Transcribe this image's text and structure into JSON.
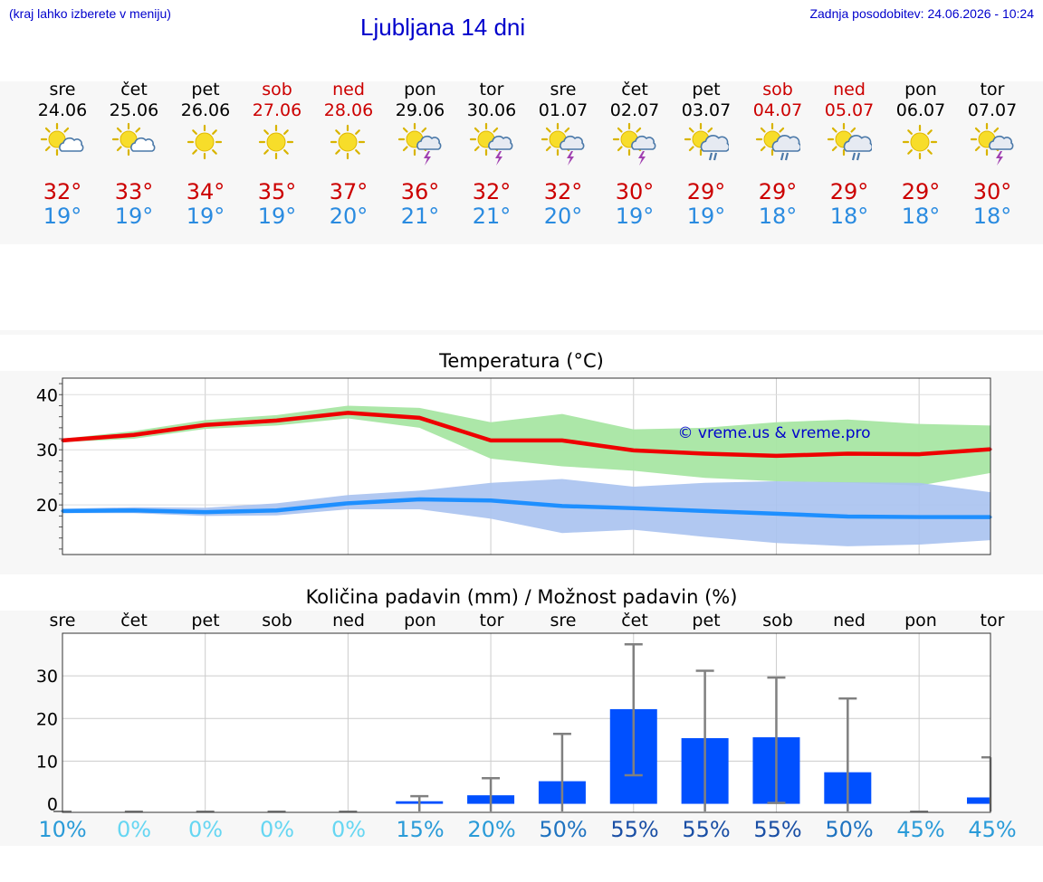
{
  "header": {
    "hint": "(kraj lahko izberete v meniju)",
    "title": "Ljubljana 14 dni",
    "updated": "Zadnja posodobitev: 24.06.2026 - 10:24"
  },
  "days": [
    {
      "name": "sre",
      "date": "24.06",
      "weekend": false,
      "icon": "sun-cloud-icon",
      "tmax": "32°",
      "tmin": "19°"
    },
    {
      "name": "čet",
      "date": "25.06",
      "weekend": false,
      "icon": "sun-cloud-icon",
      "tmax": "33°",
      "tmin": "19°"
    },
    {
      "name": "pet",
      "date": "26.06",
      "weekend": false,
      "icon": "sun-icon",
      "tmax": "34°",
      "tmin": "19°"
    },
    {
      "name": "sob",
      "date": "27.06",
      "weekend": true,
      "icon": "sun-icon",
      "tmax": "35°",
      "tmin": "19°"
    },
    {
      "name": "ned",
      "date": "28.06",
      "weekend": true,
      "icon": "sun-icon",
      "tmax": "37°",
      "tmin": "20°"
    },
    {
      "name": "pon",
      "date": "29.06",
      "weekend": false,
      "icon": "sun-storm-icon",
      "tmax": "36°",
      "tmin": "21°"
    },
    {
      "name": "tor",
      "date": "30.06",
      "weekend": false,
      "icon": "sun-storm-icon",
      "tmax": "32°",
      "tmin": "21°"
    },
    {
      "name": "sre",
      "date": "01.07",
      "weekend": false,
      "icon": "sun-storm-icon",
      "tmax": "32°",
      "tmin": "20°"
    },
    {
      "name": "čet",
      "date": "02.07",
      "weekend": false,
      "icon": "sun-storm-icon",
      "tmax": "30°",
      "tmin": "19°"
    },
    {
      "name": "pet",
      "date": "03.07",
      "weekend": false,
      "icon": "sun-rain-icon",
      "tmax": "29°",
      "tmin": "19°"
    },
    {
      "name": "sob",
      "date": "04.07",
      "weekend": true,
      "icon": "sun-rain-icon",
      "tmax": "29°",
      "tmin": "18°"
    },
    {
      "name": "ned",
      "date": "05.07",
      "weekend": true,
      "icon": "sun-rain-icon",
      "tmax": "29°",
      "tmin": "18°"
    },
    {
      "name": "pon",
      "date": "06.07",
      "weekend": false,
      "icon": "sun-icon",
      "tmax": "29°",
      "tmin": "18°"
    },
    {
      "name": "tor",
      "date": "07.07",
      "weekend": false,
      "icon": "sun-storm-icon",
      "tmax": "30°",
      "tmin": "18°"
    }
  ],
  "colors": {
    "title": "#0000cc",
    "tmax": "#cc0000",
    "tmin": "#2a8be0",
    "max_band": "#a8e6a3",
    "min_band": "#a9c2f0",
    "max_line": "#ee0000",
    "min_line": "#1e8fff",
    "bar": "#0050ff",
    "error_bar": "#808080"
  },
  "chart_data": [
    {
      "type": "line",
      "title": "Temperatura (°C)",
      "watermark": "© vreme.us & vreme.pro",
      "x": [
        "24.06",
        "25.06",
        "26.06",
        "27.06",
        "28.06",
        "29.06",
        "30.06",
        "01.07",
        "02.07",
        "03.07",
        "04.07",
        "05.07",
        "06.07",
        "07.07"
      ],
      "ylim": [
        11,
        43
      ],
      "yticks": [
        20,
        30,
        40
      ],
      "grid": true,
      "series": [
        {
          "role": "max",
          "values": [
            31.7,
            32.7,
            34.5,
            35.3,
            36.7,
            35.8,
            31.7,
            31.7,
            29.9,
            29.3,
            28.9,
            29.3,
            29.2,
            30.1
          ],
          "low": [
            31.4,
            32.0,
            33.8,
            34.4,
            35.7,
            34.0,
            28.4,
            27.0,
            26.2,
            24.9,
            24.3,
            24.0,
            23.5,
            25.8
          ],
          "high": [
            32.0,
            33.4,
            35.4,
            36.3,
            38.0,
            37.6,
            35.0,
            36.5,
            33.7,
            34.0,
            35.0,
            35.5,
            34.7,
            34.4
          ]
        },
        {
          "role": "min",
          "values": [
            18.9,
            19.0,
            18.7,
            19.0,
            20.3,
            21.0,
            20.8,
            19.8,
            19.4,
            18.9,
            18.4,
            17.9,
            17.8,
            17.8
          ],
          "low": [
            18.5,
            18.5,
            18.0,
            18.1,
            19.2,
            19.2,
            17.5,
            14.9,
            15.5,
            14.2,
            13.1,
            12.5,
            12.8,
            13.6
          ],
          "high": [
            19.3,
            19.6,
            19.5,
            20.3,
            21.8,
            22.6,
            24.0,
            24.7,
            23.3,
            24.0,
            24.3,
            24.1,
            24.0,
            22.3
          ]
        }
      ]
    },
    {
      "type": "bar",
      "title": "Količina padavin (mm) / Možnost padavin (%)",
      "categories": [
        "sre",
        "čet",
        "pet",
        "sob",
        "ned",
        "pon",
        "tor",
        "sre",
        "čet",
        "pet",
        "sob",
        "ned",
        "pon",
        "tor"
      ],
      "values": [
        0,
        0,
        0,
        0,
        0,
        0.6,
        2,
        5.3,
        22.2,
        15.4,
        15.6,
        7.4,
        0,
        1.5
      ],
      "error_low": [
        0,
        0,
        0,
        0,
        0,
        0,
        0,
        0,
        6.7,
        0,
        0.2,
        0,
        0,
        0
      ],
      "error_high": [
        0,
        0,
        0,
        0,
        0,
        1.8,
        6.0,
        16.4,
        37.4,
        31.2,
        29.6,
        24.7,
        0,
        10.9
      ],
      "ylim": [
        -2,
        40
      ],
      "yticks": [
        0,
        10,
        20,
        30
      ],
      "grid": true,
      "chance": [
        "10%",
        "0%",
        "0%",
        "0%",
        "0%",
        "15%",
        "20%",
        "50%",
        "55%",
        "55%",
        "55%",
        "50%",
        "45%",
        "45%"
      ],
      "chance_colors": [
        "#2a9bd8",
        "#66d6f2",
        "#66d6f2",
        "#66d6f2",
        "#66d6f2",
        "#2a9bd8",
        "#2a9bd8",
        "#1f73c0",
        "#1a4fa5",
        "#1a4fa5",
        "#1a4fa5",
        "#1f73c0",
        "#2a9bd8",
        "#2a9bd8"
      ]
    }
  ]
}
